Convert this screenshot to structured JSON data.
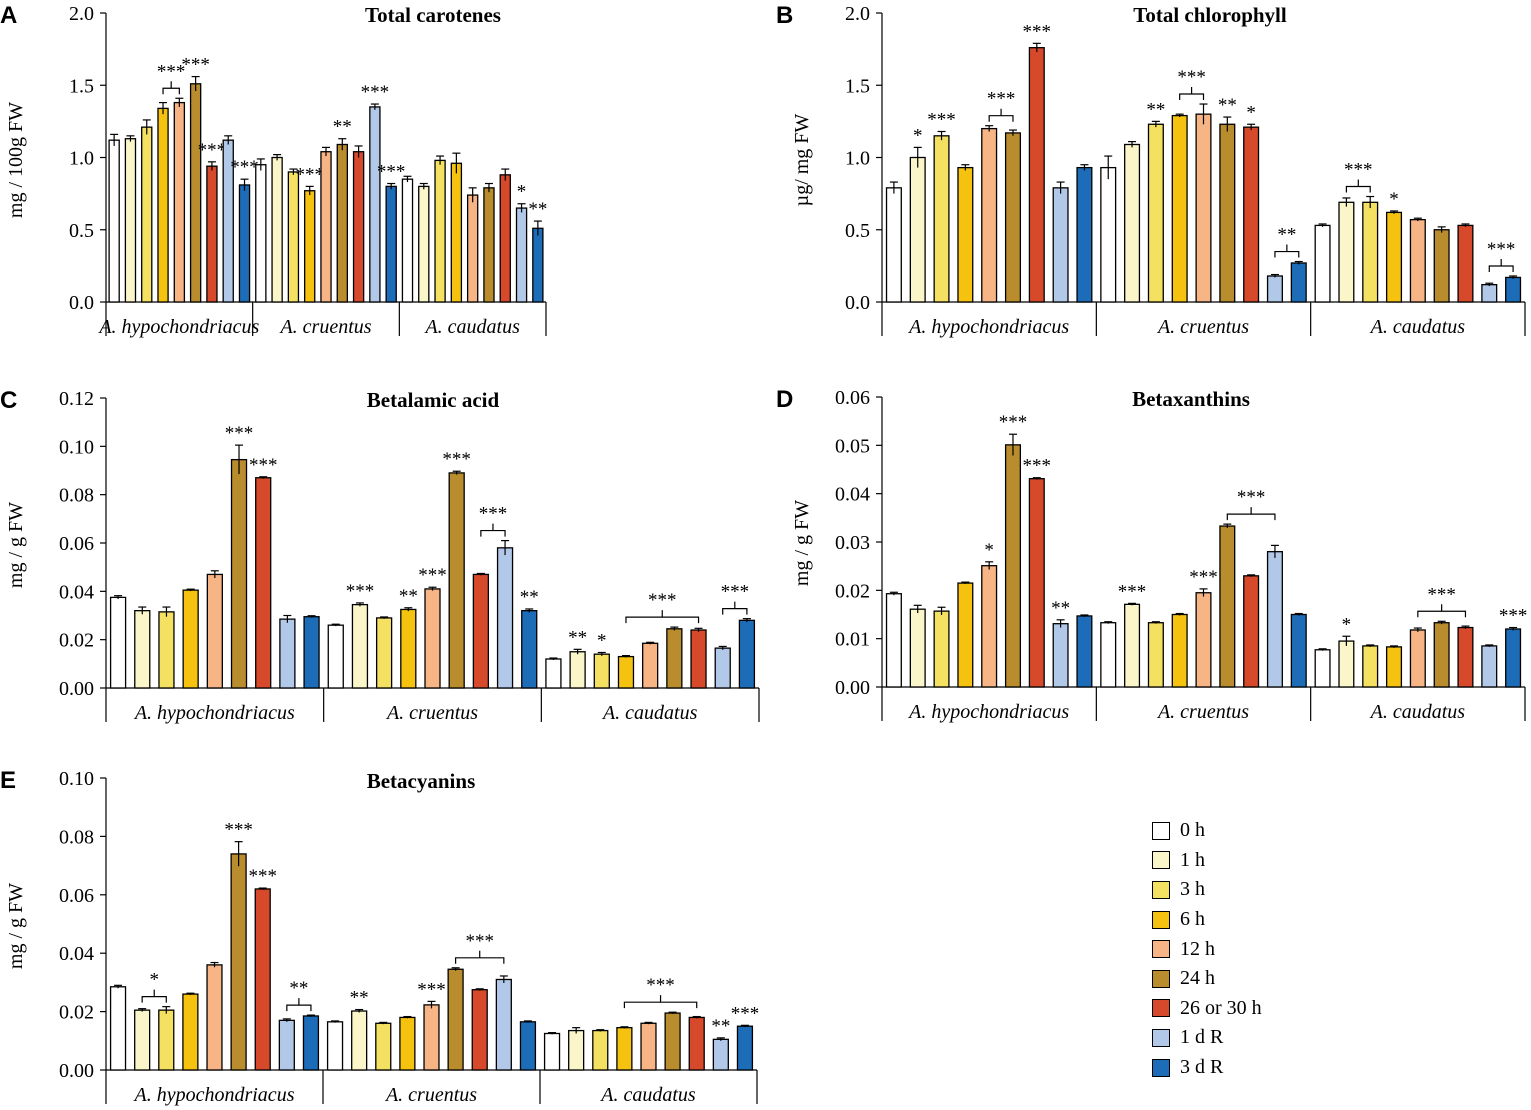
{
  "panels_meta": {
    "group_labels": [
      "A. hypochondriacus",
      "A. cruentus",
      "A. caudatus"
    ]
  },
  "legend": {
    "items": [
      {
        "label": "0 h",
        "color": "#ffffff"
      },
      {
        "label": "1 h",
        "color": "#fbf6c9"
      },
      {
        "label": "3 h",
        "color": "#f4e162"
      },
      {
        "label": "6 h",
        "color": "#f5c30f"
      },
      {
        "label": "12 h",
        "color": "#f7b485"
      },
      {
        "label": "24 h",
        "color": "#b98d2d"
      },
      {
        "label": "26 or 30 h",
        "color": "#d6492a"
      },
      {
        "label": "1 d R",
        "color": "#b2c8e8"
      },
      {
        "label": "3 d R",
        "color": "#1d6cb8"
      }
    ]
  },
  "chart_data": [
    {
      "panel": "A",
      "type": "bar",
      "title": "Total carotenes",
      "ylabel": "mg / 100g FW",
      "ylim": [
        0,
        2.0
      ],
      "yticks": [
        "0.0",
        "0.5",
        "1.0",
        "1.5",
        "2.0"
      ],
      "groups": [
        "A. hypochondriacus",
        "A. cruentus",
        "A. caudatus"
      ],
      "series_names": [
        "0 h",
        "1 h",
        "3 h",
        "6 h",
        "12 h",
        "24 h",
        "26 or 30 h",
        "1 d R",
        "3 d R"
      ],
      "values": [
        [
          1.12,
          1.13,
          1.21,
          1.34,
          1.38,
          1.51,
          0.94,
          1.12,
          0.81
        ],
        [
          0.95,
          1.0,
          0.9,
          0.77,
          1.04,
          1.09,
          1.04,
          1.35,
          0.8
        ],
        [
          0.85,
          0.8,
          0.98,
          0.96,
          0.74,
          0.79,
          0.88,
          0.65,
          0.51
        ]
      ],
      "errors": [
        [
          0.04,
          0.02,
          0.05,
          0.04,
          0.03,
          0.05,
          0.03,
          0.03,
          0.04
        ],
        [
          0.04,
          0.02,
          0.02,
          0.03,
          0.03,
          0.04,
          0.04,
          0.02,
          0.02
        ],
        [
          0.02,
          0.02,
          0.03,
          0.07,
          0.05,
          0.03,
          0.04,
          0.03,
          0.05
        ]
      ],
      "stars": [
        [
          "",
          "",
          "",
          "",
          "",
          "***",
          "***",
          "",
          "***"
        ],
        [
          "",
          "",
          "",
          "***",
          "",
          "**",
          "",
          "***",
          "***"
        ],
        [
          "",
          "",
          "",
          "",
          "",
          "",
          "",
          "*",
          "**"
        ]
      ],
      "brackets": [
        {
          "group": 0,
          "from": 3,
          "to": 4,
          "label": "***"
        }
      ]
    },
    {
      "panel": "B",
      "type": "bar",
      "title": "Total chlorophyll",
      "ylabel": "µg/ mg FW",
      "ylim": [
        0,
        2.0
      ],
      "yticks": [
        "0.0",
        "0.5",
        "1.0",
        "1.5",
        "2.0"
      ],
      "groups": [
        "A. hypochondriacus",
        "A. cruentus",
        "A. caudatus"
      ],
      "series_names": [
        "0 h",
        "1 h",
        "3 h",
        "6 h",
        "12 h",
        "24 h",
        "26 or 30 h",
        "1 d R",
        "3 d R"
      ],
      "values": [
        [
          0.79,
          1.0,
          1.15,
          0.93,
          1.2,
          1.17,
          1.76,
          0.79,
          0.93
        ],
        [
          0.93,
          1.09,
          1.23,
          1.29,
          1.3,
          1.23,
          1.21,
          0.18,
          0.27
        ],
        [
          0.53,
          0.69,
          0.69,
          0.62,
          0.57,
          0.5,
          0.53,
          0.12,
          0.17
        ]
      ],
      "errors": [
        [
          0.04,
          0.07,
          0.03,
          0.02,
          0.02,
          0.02,
          0.03,
          0.04,
          0.02
        ],
        [
          0.08,
          0.02,
          0.02,
          0.01,
          0.07,
          0.05,
          0.02,
          0.01,
          0.01
        ],
        [
          0.01,
          0.03,
          0.04,
          0.01,
          0.01,
          0.02,
          0.01,
          0.01,
          0.01
        ]
      ],
      "stars": [
        [
          "",
          "*",
          "***",
          "",
          "",
          "",
          "***",
          "",
          ""
        ],
        [
          "",
          "",
          "**",
          "",
          "",
          "**",
          "*",
          "",
          ""
        ],
        [
          "",
          "",
          "",
          "*",
          "",
          "",
          "",
          "",
          ""
        ]
      ],
      "brackets": [
        {
          "group": 0,
          "from": 4,
          "to": 5,
          "label": "***"
        },
        {
          "group": 1,
          "from": 3,
          "to": 4,
          "label": "***"
        },
        {
          "group": 1,
          "from": 7,
          "to": 8,
          "label": "**"
        },
        {
          "group": 2,
          "from": 1,
          "to": 2,
          "label": "***"
        },
        {
          "group": 2,
          "from": 7,
          "to": 8,
          "label": "***"
        }
      ]
    },
    {
      "panel": "C",
      "type": "bar",
      "title": "Betalamic acid",
      "ylabel": "mg / g FW",
      "ylim": [
        0,
        0.12
      ],
      "yticks": [
        "0.00",
        "0.02",
        "0.04",
        "0.06",
        "0.08",
        "0.10",
        "0.12"
      ],
      "groups": [
        "A. hypochondriacus",
        "A. cruentus",
        "A. caudatus"
      ],
      "series_names": [
        "0 h",
        "1 h",
        "3 h",
        "6 h",
        "12 h",
        "24 h",
        "26 or 30 h",
        "1 d R",
        "3 d R"
      ],
      "values": [
        [
          0.0375,
          0.032,
          0.0315,
          0.0405,
          0.047,
          0.0945,
          0.087,
          0.0285,
          0.0295
        ],
        [
          0.026,
          0.0345,
          0.029,
          0.0325,
          0.041,
          0.089,
          0.047,
          0.058,
          0.032
        ],
        [
          0.012,
          0.015,
          0.014,
          0.013,
          0.0185,
          0.0245,
          0.024,
          0.0165,
          0.028
        ]
      ],
      "errors": [
        [
          0.0007,
          0.0015,
          0.002,
          0.0004,
          0.0015,
          0.006,
          0.0004,
          0.0015,
          0.0004
        ],
        [
          0.0004,
          0.0007,
          0.0004,
          0.0007,
          0.0007,
          0.0007,
          0.0004,
          0.003,
          0.0007
        ],
        [
          0.0004,
          0.001,
          0.0007,
          0.0004,
          0.0004,
          0.0007,
          0.0007,
          0.0007,
          0.0007
        ]
      ],
      "stars": [
        [
          "",
          "",
          "",
          "",
          "",
          "***",
          "***",
          "",
          ""
        ],
        [
          "",
          "***",
          "",
          "**",
          "***",
          "***",
          "",
          "",
          "**"
        ],
        [
          "",
          "**",
          "*",
          "",
          "",
          "",
          "",
          "",
          ""
        ]
      ],
      "brackets": [
        {
          "group": 1,
          "from": 6,
          "to": 7,
          "label": "***"
        },
        {
          "group": 2,
          "from": 3,
          "to": 6,
          "label": "***"
        },
        {
          "group": 2,
          "from": 7,
          "to": 8,
          "label": "***"
        }
      ]
    },
    {
      "panel": "D",
      "type": "bar",
      "title": "Betaxanthins",
      "ylabel": "mg / g FW",
      "ylim": [
        0,
        0.06
      ],
      "yticks": [
        "0.00",
        "0.01",
        "0.02",
        "0.03",
        "0.04",
        "0.05",
        "0.06"
      ],
      "groups": [
        "A. hypochondriacus",
        "A. cruentus",
        "A. caudatus"
      ],
      "series_names": [
        "0 h",
        "1 h",
        "3 h",
        "6 h",
        "12 h",
        "24 h",
        "26 or 30 h",
        "1 d R",
        "3 d R"
      ],
      "values": [
        [
          0.0193,
          0.0161,
          0.0157,
          0.0215,
          0.0251,
          0.0501,
          0.0431,
          0.0131,
          0.0147
        ],
        [
          0.0133,
          0.0171,
          0.0133,
          0.015,
          0.0195,
          0.0333,
          0.023,
          0.028,
          0.015
        ],
        [
          0.0077,
          0.0095,
          0.0085,
          0.0083,
          0.0118,
          0.0133,
          0.0123,
          0.0085,
          0.012
        ]
      ],
      "errors": [
        [
          0.0003,
          0.0008,
          0.0008,
          0.0002,
          0.0008,
          0.0022,
          0.0002,
          0.0008,
          0.0002
        ],
        [
          0.0002,
          0.0002,
          0.0002,
          0.0002,
          0.0008,
          0.0004,
          0.0002,
          0.0013,
          0.0002
        ],
        [
          0.0002,
          0.001,
          0.0002,
          0.0002,
          0.0004,
          0.0003,
          0.0003,
          0.0002,
          0.0003
        ]
      ],
      "stars": [
        [
          "",
          "",
          "",
          "",
          "*",
          "***",
          "***",
          "**",
          ""
        ],
        [
          "",
          "***",
          "",
          "",
          "***",
          "",
          "",
          "",
          ""
        ],
        [
          "",
          "*",
          "",
          "",
          "",
          "",
          "",
          "",
          "***"
        ]
      ],
      "brackets": [
        {
          "group": 1,
          "from": 5,
          "to": 7,
          "label": "***"
        },
        {
          "group": 2,
          "from": 4,
          "to": 6,
          "label": "***"
        }
      ]
    },
    {
      "panel": "E",
      "type": "bar",
      "title": "Betacyanins",
      "ylabel": "mg / g FW",
      "ylim": [
        0,
        0.1
      ],
      "yticks": [
        "0.00",
        "0.02",
        "0.04",
        "0.06",
        "0.08",
        "0.10"
      ],
      "groups": [
        "A. hypochondriacus",
        "A. cruentus",
        "A. caudatus"
      ],
      "series_names": [
        "0 h",
        "1 h",
        "3 h",
        "6 h",
        "12 h",
        "24 h",
        "26 or 30 h",
        "1 d R",
        "3 d R"
      ],
      "values": [
        [
          0.0285,
          0.0205,
          0.0205,
          0.026,
          0.036,
          0.074,
          0.062,
          0.017,
          0.0185
        ],
        [
          0.0165,
          0.0202,
          0.016,
          0.018,
          0.0223,
          0.0345,
          0.0275,
          0.031,
          0.0165
        ],
        [
          0.0125,
          0.0135,
          0.0135,
          0.0145,
          0.016,
          0.0195,
          0.018,
          0.0105,
          0.015
        ]
      ],
      "errors": [
        [
          0.0005,
          0.0005,
          0.0012,
          0.0003,
          0.0008,
          0.0042,
          0.0003,
          0.0005,
          0.0003
        ],
        [
          0.0003,
          0.0005,
          0.0003,
          0.0003,
          0.0012,
          0.0005,
          0.0003,
          0.0012,
          0.0003
        ],
        [
          0.0003,
          0.001,
          0.0003,
          0.0003,
          0.0003,
          0.0003,
          0.0003,
          0.0005,
          0.0003
        ]
      ],
      "stars": [
        [
          "",
          "",
          "",
          "",
          "",
          "***",
          "***",
          "",
          ""
        ],
        [
          "",
          "**",
          "",
          "",
          "***",
          "",
          "",
          "",
          ""
        ],
        [
          "",
          "",
          "",
          "",
          "",
          "",
          "",
          "**",
          "***"
        ]
      ],
      "brackets": [
        {
          "group": 0,
          "from": 1,
          "to": 2,
          "label": "*"
        },
        {
          "group": 0,
          "from": 7,
          "to": 8,
          "label": "**"
        },
        {
          "group": 1,
          "from": 5,
          "to": 7,
          "label": "***"
        },
        {
          "group": 2,
          "from": 3,
          "to": 6,
          "label": "***"
        }
      ]
    }
  ]
}
